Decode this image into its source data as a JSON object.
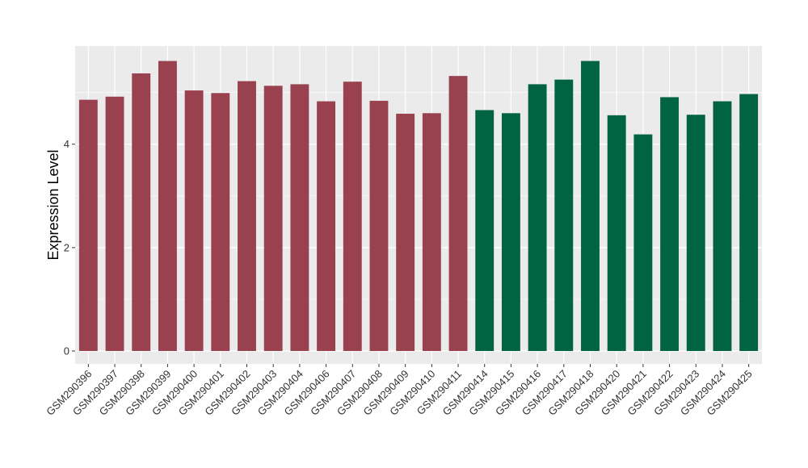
{
  "chart_data": {
    "type": "bar",
    "xlabel": "",
    "ylabel": "Expression Level",
    "ylim": [
      -0.25,
      5.9
    ],
    "yticks": [
      0,
      2,
      4
    ],
    "grid": true,
    "legend": "none",
    "colors": {
      "group1": "#9a4150",
      "group2": "#006341",
      "panel": "#ebebeb",
      "grid": "#ffffff"
    },
    "categories": [
      "GSM290396",
      "GSM290397",
      "GSM290398",
      "GSM290399",
      "GSM290400",
      "GSM290401",
      "GSM290402",
      "GSM290403",
      "GSM290404",
      "GSM290406",
      "GSM290407",
      "GSM290408",
      "GSM290409",
      "GSM290410",
      "GSM290411",
      "GSM290414",
      "GSM290415",
      "GSM290416",
      "GSM290417",
      "GSM290418",
      "GSM290420",
      "GSM290421",
      "GSM290422",
      "GSM290423",
      "GSM290424",
      "GSM290425"
    ],
    "values": [
      4.86,
      4.92,
      5.37,
      5.61,
      5.04,
      4.99,
      5.22,
      5.13,
      5.16,
      4.83,
      5.21,
      4.84,
      4.59,
      4.6,
      5.32,
      4.66,
      4.6,
      5.16,
      5.25,
      5.61,
      4.56,
      4.19,
      4.91,
      4.57,
      4.83,
      4.97
    ],
    "groups": [
      1,
      1,
      1,
      1,
      1,
      1,
      1,
      1,
      1,
      1,
      1,
      1,
      1,
      1,
      1,
      2,
      2,
      2,
      2,
      2,
      2,
      2,
      2,
      2,
      2,
      2
    ]
  }
}
